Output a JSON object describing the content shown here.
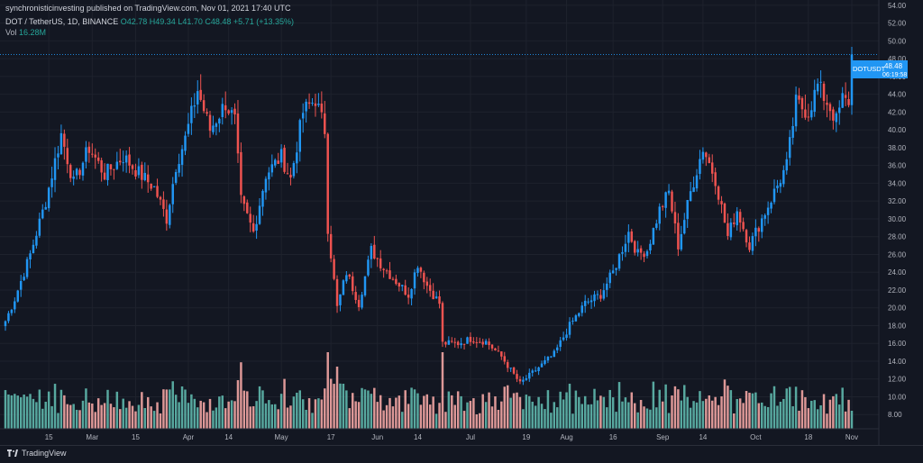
{
  "header": {
    "publisher_line": "synchronisticinvesting published on TradingView.com, Nov 01, 2021 17:40 UTC",
    "symbol_line": "DOT / TetherUS, 1D, BINANCE",
    "o": "O42.78",
    "h": "H49.34",
    "l": "L41.70",
    "c": "C48.48",
    "change": "+5.71 (+13.35%)",
    "vol_label": "Vol",
    "vol_value": "16.28M"
  },
  "price_tag": {
    "symbol": "DOTUSDT",
    "price": "48.48",
    "countdown": "06:19:58"
  },
  "footer": {
    "brand": "TradingView"
  },
  "colors": {
    "up": "#26a69a",
    "down": "#ef5350",
    "up_body": "#2196f3",
    "vol_up": "#5fb8ad",
    "vol_down": "#f4a6a4",
    "tag": "#2196f3"
  },
  "chart_data": {
    "type": "candlestick",
    "y_ticks": [
      "8.00",
      "10.00",
      "12.00",
      "14.00",
      "16.00",
      "18.00",
      "20.00",
      "22.00",
      "24.00",
      "26.00",
      "28.00",
      "30.00",
      "32.00",
      "34.00",
      "36.00",
      "38.00",
      "40.00",
      "42.00",
      "44.00",
      "46.00",
      "48.00",
      "50.00",
      "52.00",
      "54.00"
    ],
    "ylim": [
      6.4,
      54.6
    ],
    "x_ticks": [
      {
        "label": "15",
        "day": 14
      },
      {
        "label": "Mar",
        "day": 28
      },
      {
        "label": "15",
        "day": 42
      },
      {
        "label": "Apr",
        "day": 59
      },
      {
        "label": "14",
        "day": 72
      },
      {
        "label": "May",
        "day": 89
      },
      {
        "label": "17",
        "day": 105
      },
      {
        "label": "Jun",
        "day": 120
      },
      {
        "label": "14",
        "day": 133
      },
      {
        "label": "Jul",
        "day": 150
      },
      {
        "label": "19",
        "day": 168
      },
      {
        "label": "Aug",
        "day": 181
      },
      {
        "label": "16",
        "day": 196
      },
      {
        "label": "Sep",
        "day": 212
      },
      {
        "label": "14",
        "day": 225
      },
      {
        "label": "Oct",
        "day": 242
      },
      {
        "label": "18",
        "day": 259
      },
      {
        "label": "Nov",
        "day": 273
      }
    ],
    "anchors": [
      [
        0,
        18.5
      ],
      [
        3,
        21.0
      ],
      [
        8,
        26.0
      ],
      [
        13,
        32.0
      ],
      [
        18,
        39.5
      ],
      [
        22,
        34.0
      ],
      [
        27,
        38.0
      ],
      [
        32,
        35.0
      ],
      [
        38,
        37.0
      ],
      [
        42,
        35.5
      ],
      [
        48,
        33.5
      ],
      [
        52,
        30.0
      ],
      [
        55,
        36.0
      ],
      [
        58,
        39.0
      ],
      [
        62,
        44.5
      ],
      [
        66,
        40.0
      ],
      [
        71,
        43.0
      ],
      [
        74,
        41.0
      ],
      [
        76,
        32.0
      ],
      [
        80,
        28.5
      ],
      [
        84,
        35.0
      ],
      [
        89,
        37.0
      ],
      [
        92,
        34.5
      ],
      [
        96,
        42.0
      ],
      [
        100,
        43.5
      ],
      [
        103,
        40.0
      ],
      [
        104,
        29.0
      ],
      [
        107,
        20.0
      ],
      [
        110,
        24.0
      ],
      [
        114,
        20.5
      ],
      [
        118,
        26.5
      ],
      [
        122,
        24.5
      ],
      [
        126,
        23.0
      ],
      [
        130,
        21.5
      ],
      [
        133,
        25.0
      ],
      [
        136,
        22.5
      ],
      [
        140,
        20.5
      ],
      [
        141,
        16.0
      ],
      [
        146,
        16.0
      ],
      [
        150,
        16.5
      ],
      [
        155,
        16.2
      ],
      [
        160,
        14.5
      ],
      [
        166,
        11.5
      ],
      [
        171,
        13.0
      ],
      [
        177,
        14.8
      ],
      [
        182,
        18.0
      ],
      [
        187,
        20.5
      ],
      [
        192,
        21.5
      ],
      [
        196,
        24.0
      ],
      [
        201,
        28.5
      ],
      [
        204,
        26.0
      ],
      [
        207,
        26.5
      ],
      [
        211,
        31.0
      ],
      [
        214,
        33.0
      ],
      [
        217,
        27.0
      ],
      [
        221,
        33.0
      ],
      [
        225,
        38.0
      ],
      [
        229,
        34.5
      ],
      [
        233,
        28.0
      ],
      [
        236,
        31.0
      ],
      [
        240,
        27.0
      ],
      [
        244,
        30.0
      ],
      [
        248,
        33.0
      ],
      [
        252,
        36.0
      ],
      [
        255,
        43.0
      ],
      [
        259,
        42.0
      ],
      [
        262,
        45.0
      ],
      [
        266,
        42.5
      ],
      [
        268,
        41.0
      ],
      [
        270,
        43.5
      ],
      [
        272,
        42.78
      ],
      [
        273,
        48.48
      ]
    ],
    "last": {
      "open": 42.78,
      "high": 49.34,
      "low": 41.7,
      "close": 48.48,
      "change": 5.71,
      "change_pct": 13.35,
      "volume": "16.28M"
    }
  }
}
